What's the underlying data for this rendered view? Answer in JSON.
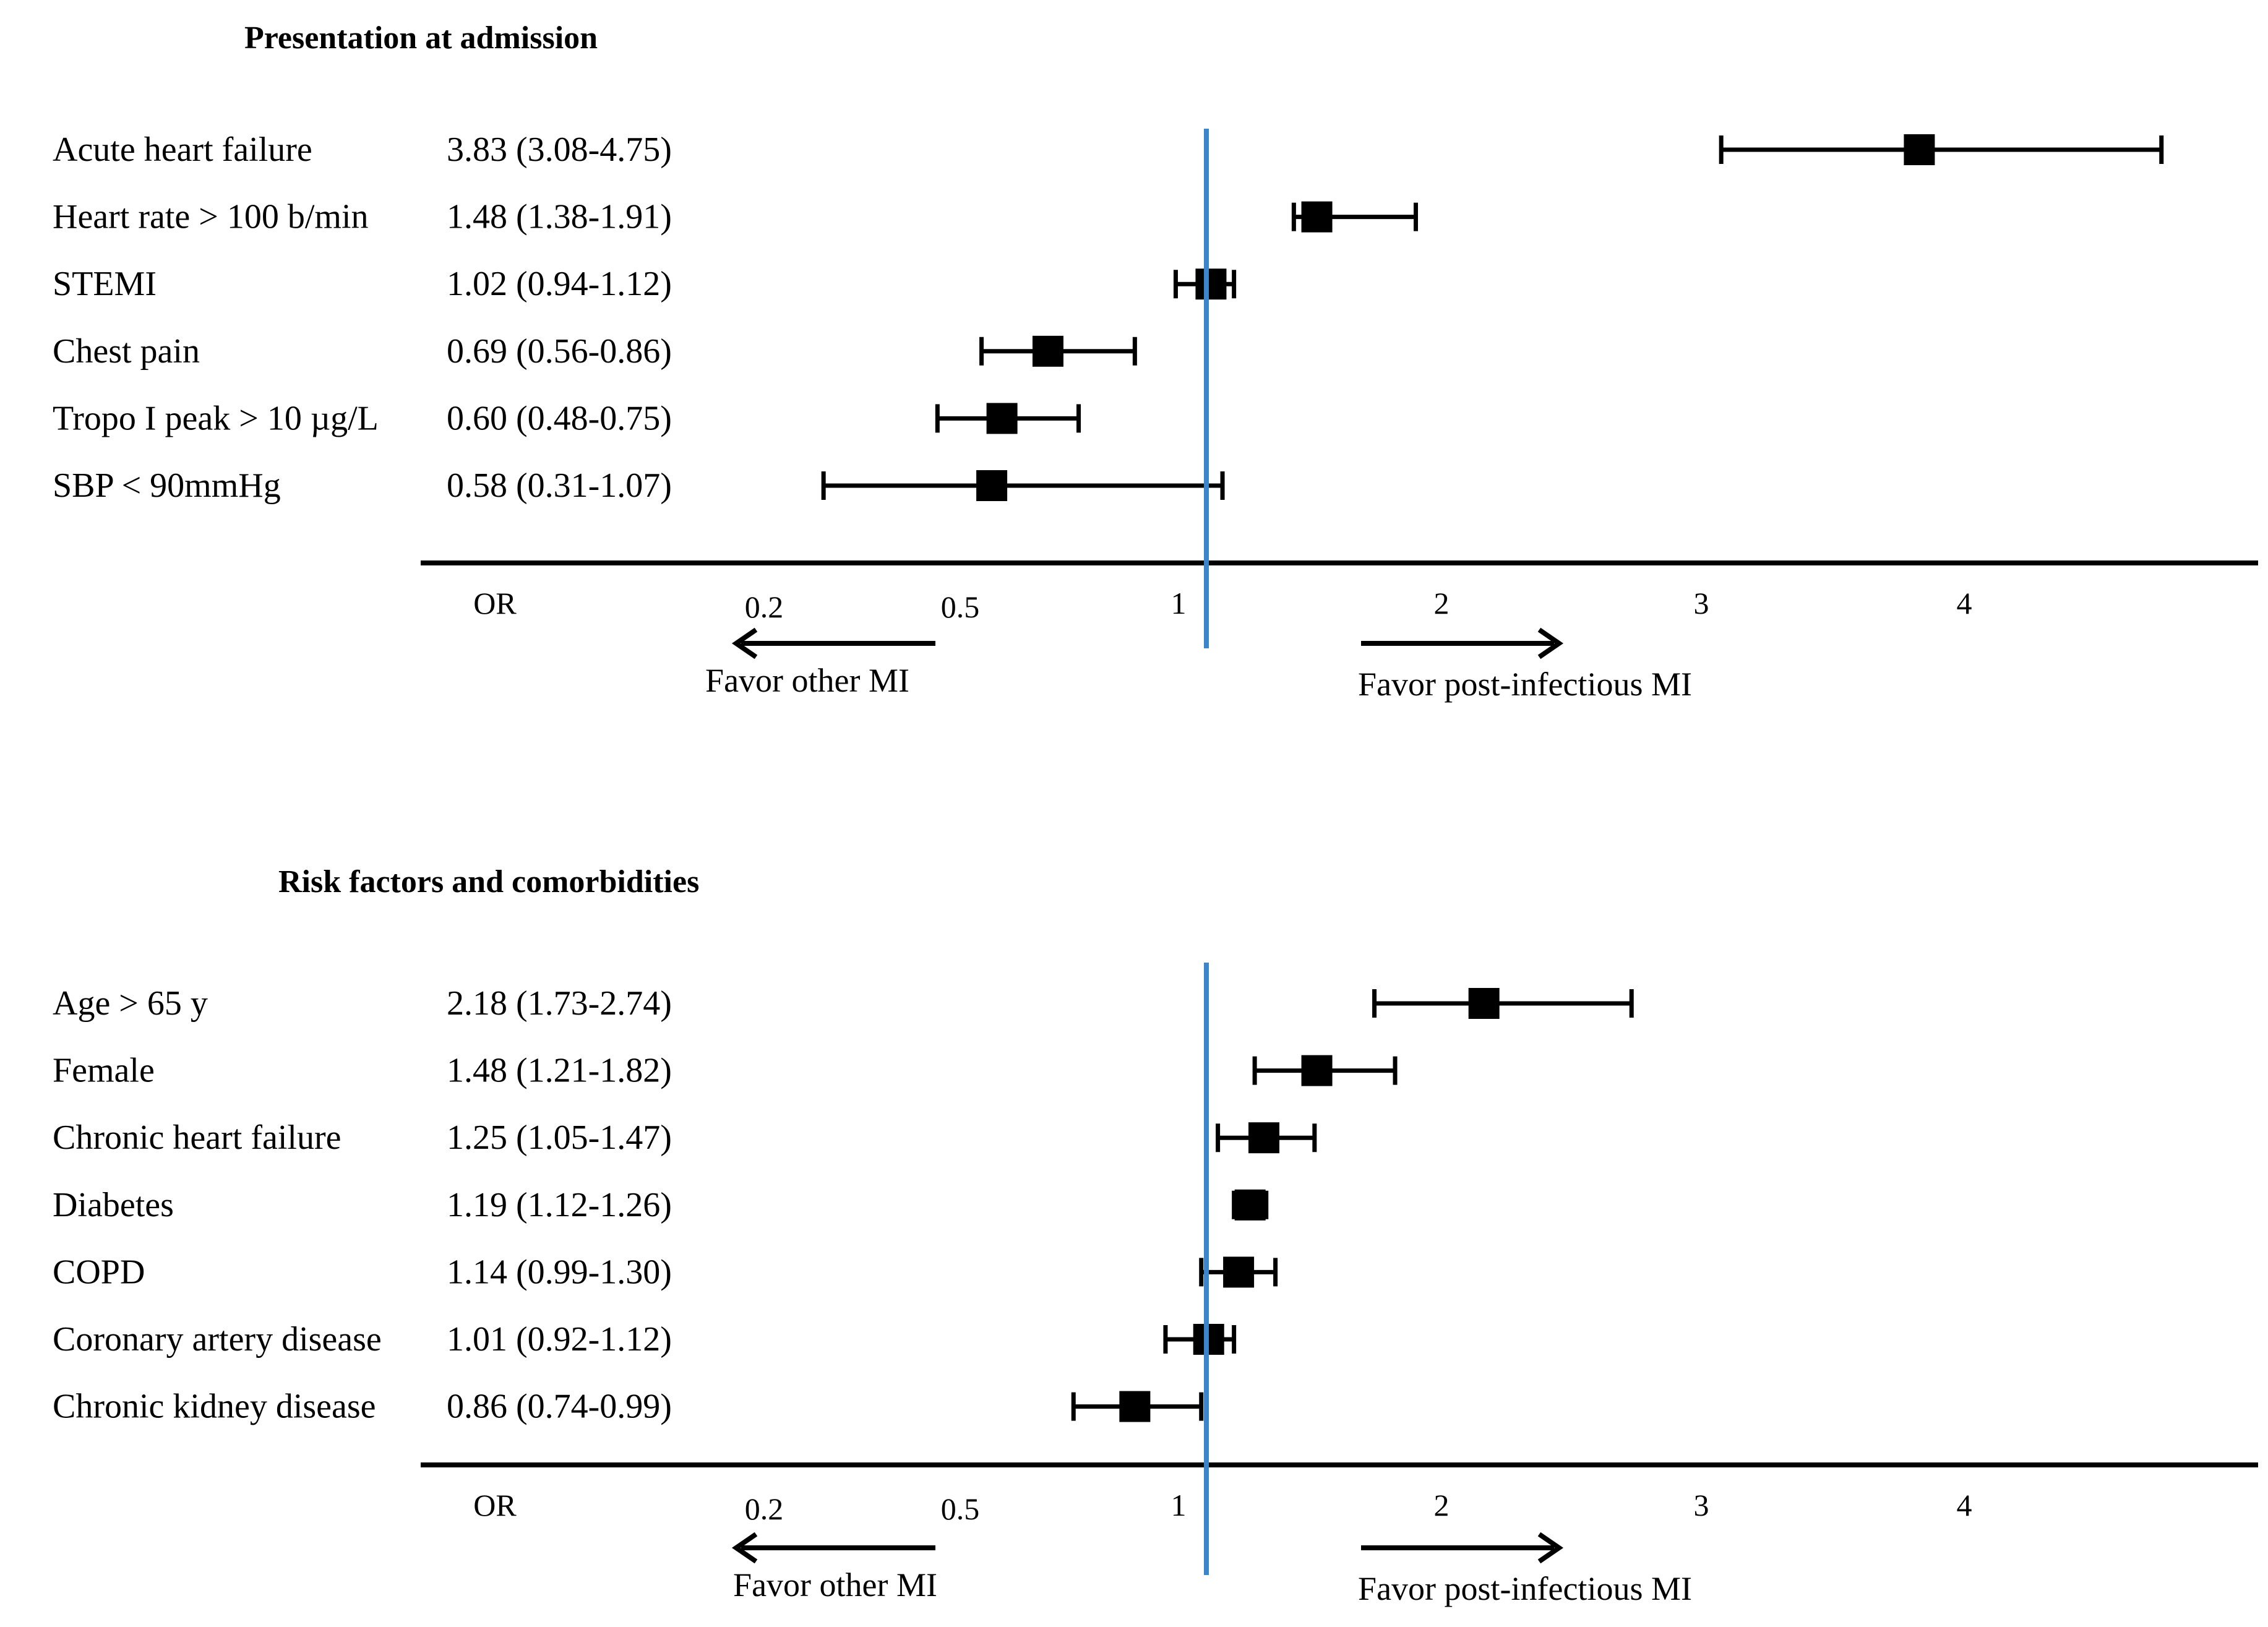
{
  "chart_data": [
    {
      "type": "forest",
      "title": "Presentation at admission",
      "axis_label": "OR",
      "tick_labels": [
        "0.2",
        "0.5",
        "1",
        "2",
        "3",
        "4"
      ],
      "reference_value": 1,
      "favor_left": "Favor other MI",
      "favor_right": "Favor post-infectious MI",
      "rows": [
        {
          "label": "Acute heart failure",
          "estimate_text": "3.83 (3.08-4.75)",
          "or": 3.83,
          "lower": 3.08,
          "upper": 4.75
        },
        {
          "label": "Heart rate > 100 b/min",
          "estimate_text": "1.48 (1.38-1.91)",
          "or": 1.48,
          "lower": 1.38,
          "upper": 1.91
        },
        {
          "label": "STEMI",
          "estimate_text": "1.02 (0.94-1.12)",
          "or": 1.02,
          "lower": 0.94,
          "upper": 1.12
        },
        {
          "label": "Chest pain",
          "estimate_text": "0.69 (0.56-0.86)",
          "or": 0.69,
          "lower": 0.56,
          "upper": 0.86
        },
        {
          "label": "Tropo I peak > 10 µg/L",
          "estimate_text": "0.60 (0.48-0.75)",
          "or": 0.6,
          "lower": 0.48,
          "upper": 0.75
        },
        {
          "label": "SBP < 90mmHg",
          "estimate_text": "0.58 (0.31-1.07)",
          "or": 0.58,
          "lower": 0.31,
          "upper": 1.07
        }
      ]
    },
    {
      "type": "forest",
      "title": "Risk factors and comorbidities",
      "axis_label": "OR",
      "tick_labels": [
        "0.2",
        "0.5",
        "1",
        "2",
        "3",
        "4"
      ],
      "reference_value": 1,
      "favor_left": "Favor other MI",
      "favor_right": "Favor post-infectious MI",
      "rows": [
        {
          "label": "Age > 65 y",
          "estimate_text": "2.18 (1.73-2.74)",
          "or": 2.18,
          "lower": 1.73,
          "upper": 2.74
        },
        {
          "label": "Female",
          "estimate_text": "1.48 (1.21-1.82)",
          "or": 1.48,
          "lower": 1.21,
          "upper": 1.82
        },
        {
          "label": "Chronic heart failure",
          "estimate_text": "1.25 (1.05-1.47)",
          "or": 1.25,
          "lower": 1.05,
          "upper": 1.47
        },
        {
          "label": "Diabetes",
          "estimate_text": "1.19 (1.12-1.26)",
          "or": 1.19,
          "lower": 1.12,
          "upper": 1.26
        },
        {
          "label": "COPD",
          "estimate_text": "1.14 (0.99-1.30)",
          "or": 1.14,
          "lower": 0.99,
          "upper": 1.3
        },
        {
          "label": "Coronary artery disease",
          "estimate_text": "1.01 (0.92-1.12)",
          "or": 1.01,
          "lower": 0.92,
          "upper": 1.12
        },
        {
          "label": "Chronic kidney disease",
          "estimate_text": "0.86 (0.74-0.99)",
          "or": 0.86,
          "lower": 0.74,
          "upper": 0.99
        }
      ]
    }
  ],
  "colors": {
    "reference_line": "#3a86c8",
    "marks": "#000000",
    "text": "#000000",
    "background": "#ffffff"
  }
}
